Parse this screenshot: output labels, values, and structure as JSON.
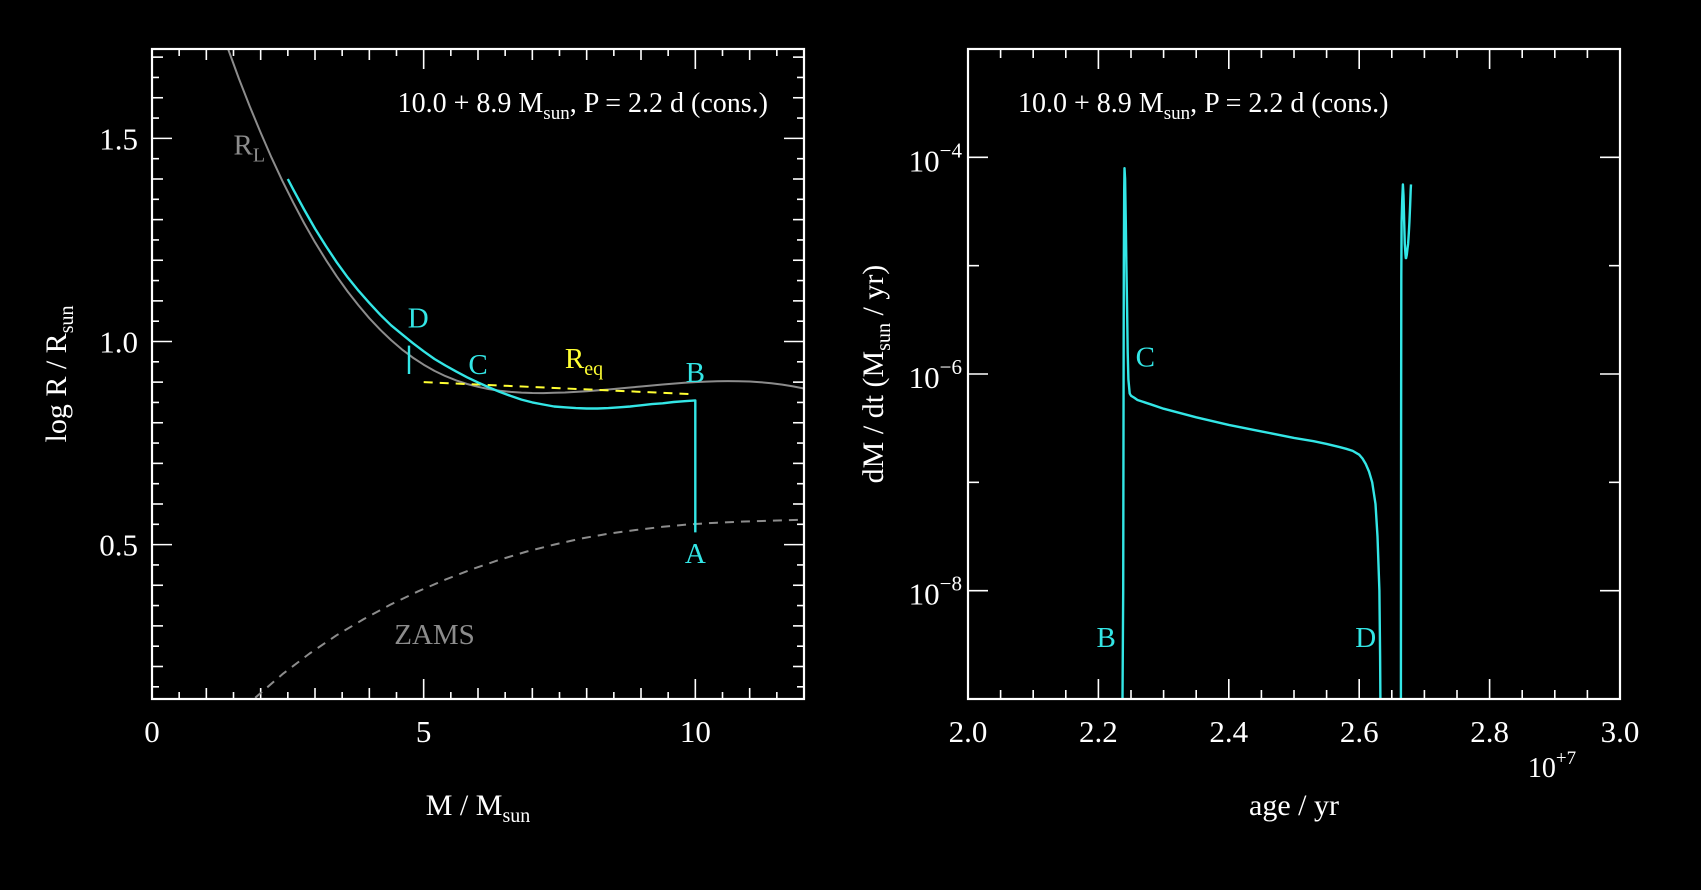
{
  "colors": {
    "background": "#000000",
    "axes": "#ffffff",
    "track": "#33e6e6",
    "roche": "#8c8c8c",
    "zams": "#8c8c8c",
    "req": "#ffff33",
    "marker": "#33e6e6"
  },
  "chart_data": [
    {
      "type": "line",
      "title": "10.0 + 8.9 M_sun, P = 2.2 d (cons.)",
      "title_parts": {
        "pre": "10.0 + 8.9 M",
        "sub": "sun",
        "post": ", P = 2.2 d (cons.)"
      },
      "xlabel": {
        "pre": "M / M",
        "sub": "sun"
      },
      "ylabel": {
        "pre": "log R / R",
        "sub": "sun"
      },
      "xlim": [
        0,
        12
      ],
      "ylim": [
        0.12,
        1.72
      ],
      "xticks": [
        0,
        5,
        10
      ],
      "xtick_labels": [
        "0",
        "5",
        "10"
      ],
      "yticks": [
        0.5,
        1.0,
        1.5
      ],
      "ytick_labels": [
        "0.5",
        "1.0",
        "1.5"
      ],
      "series": [
        {
          "name": "R_L",
          "label": {
            "pre": "R",
            "sub": "L",
            "x": 1.5,
            "y": 1.46
          },
          "style": "solid",
          "color": "roche",
          "x": [
            1.4,
            1.6,
            1.8,
            2.0,
            2.2,
            2.4,
            2.6,
            2.8,
            3.0,
            3.2,
            3.4,
            3.6,
            3.8,
            4.0,
            4.2,
            4.4,
            4.6,
            4.8,
            5.0,
            5.2,
            5.4,
            5.6,
            5.8,
            6.0,
            6.2,
            6.4,
            6.6,
            6.8,
            7.0,
            7.2,
            7.4,
            7.6,
            7.8,
            8.0,
            8.2,
            8.4,
            8.6,
            8.8,
            9.0,
            9.2,
            9.4,
            9.6,
            9.8,
            10.0,
            10.2,
            10.4,
            10.6,
            10.8,
            11.0,
            11.2,
            11.4,
            11.6,
            11.8,
            12.0
          ],
          "y": [
            1.72,
            1.6472,
            1.5785,
            1.5137,
            1.4527,
            1.3954,
            1.3416,
            1.2914,
            1.2445,
            1.2009,
            1.1604,
            1.1231,
            1.0888,
            1.0574,
            1.029,
            1.0034,
            0.9805,
            0.9604,
            0.9428,
            0.9277,
            0.9149,
            0.9042,
            0.8954,
            0.8884,
            0.8829,
            0.8789,
            0.876,
            0.8742,
            0.8733,
            0.8731,
            0.8736,
            0.8745,
            0.8759,
            0.8777,
            0.8797,
            0.8819,
            0.8843,
            0.8868,
            0.8893,
            0.8918,
            0.8941,
            0.8963,
            0.8983,
            0.9,
            0.9013,
            0.9022,
            0.9026,
            0.9024,
            0.9015,
            0.8999,
            0.8974,
            0.894,
            0.8896,
            0.8842
          ]
        },
        {
          "name": "ZAMS",
          "label": {
            "text": "ZAMS",
            "x": 5.2,
            "y": 0.255
          },
          "style": "dashed",
          "color": "zams",
          "x": [
            1.9,
            2.4,
            2.9,
            3.4,
            3.9,
            4.4,
            4.9,
            5.4,
            5.9,
            6.4,
            6.9,
            7.4,
            7.9,
            8.4,
            8.9,
            9.4,
            9.9,
            10.4,
            10.9,
            11.4,
            11.9,
            12.0
          ],
          "y": [
            0.123,
            0.181,
            0.232,
            0.277,
            0.317,
            0.353,
            0.385,
            0.414,
            0.44,
            0.463,
            0.483,
            0.5,
            0.515,
            0.527,
            0.536,
            0.544,
            0.55,
            0.554,
            0.557,
            0.559,
            0.561,
            0.562
          ]
        },
        {
          "name": "R_eq",
          "label": {
            "pre": "R",
            "sub": "eq",
            "x": 7.6,
            "y": 0.935
          },
          "style": "dashed",
          "color": "req",
          "x": [
            5.0,
            10.0
          ],
          "y": [
            0.9,
            0.87
          ]
        },
        {
          "name": "track",
          "style": "solid",
          "color": "track",
          "x": [
            10.0,
            10.0,
            9.8,
            9.6,
            9.4,
            9.2,
            9.0,
            8.8,
            8.6,
            8.4,
            8.2,
            8.0,
            7.8,
            7.6,
            7.4,
            7.2,
            7.0,
            6.8,
            6.6,
            6.4,
            6.2,
            6.0,
            5.8,
            5.6,
            5.4,
            5.2,
            5.0,
            4.8,
            4.6,
            4.4,
            4.2,
            4.0,
            3.8,
            3.6,
            3.4,
            3.2,
            3.0,
            2.8,
            2.6,
            2.5
          ],
          "y": [
            0.53,
            0.855,
            0.853,
            0.851,
            0.848,
            0.846,
            0.843,
            0.84,
            0.838,
            0.836,
            0.835,
            0.835,
            0.836,
            0.838,
            0.84,
            0.845,
            0.85,
            0.857,
            0.866,
            0.876,
            0.887,
            0.899,
            0.912,
            0.926,
            0.941,
            0.957,
            0.976,
            0.996,
            1.018,
            1.04,
            1.066,
            1.095,
            1.125,
            1.158,
            1.195,
            1.235,
            1.278,
            1.325,
            1.374,
            1.4
          ]
        },
        {
          "name": "D-spur",
          "style": "solid",
          "color": "track",
          "x": [
            4.73,
            4.73
          ],
          "y": [
            0.99,
            0.92
          ]
        }
      ],
      "annotations": [
        {
          "text": "A",
          "x": 10.0,
          "y": 0.455,
          "color": "marker"
        },
        {
          "text": "B",
          "x": 10.0,
          "y": 0.9,
          "color": "marker"
        },
        {
          "text": "C",
          "x": 6.0,
          "y": 0.92,
          "color": "marker"
        },
        {
          "text": "D",
          "x": 4.9,
          "y": 1.035,
          "color": "marker"
        }
      ]
    },
    {
      "type": "line",
      "title": "10.0 + 8.9 M_sun, P = 2.2 d (cons.)",
      "title_parts": {
        "pre": "10.0 + 8.9 M",
        "sub": "sun",
        "post": ", P = 2.2 d (cons.)"
      },
      "xlabel": {
        "text": "age / yr"
      },
      "ylabel": {
        "pre": "dM / dt (M",
        "sub": "sun",
        "post": " / yr)"
      },
      "x_multiplier": {
        "base": "10",
        "exp": "+7"
      },
      "xlim": [
        2.0,
        3.0
      ],
      "ylim_log10": [
        -9.0,
        -3.0
      ],
      "yscale": "log",
      "xticks": [
        2.0,
        2.2,
        2.4,
        2.6,
        2.8,
        3.0
      ],
      "xtick_labels": [
        "2.0",
        "2.2",
        "2.4",
        "2.6",
        "2.8",
        "3.0"
      ],
      "yticks_log10": [
        -8,
        -6,
        -4
      ],
      "ytick_labels": [
        {
          "base": "10",
          "exp": "−8"
        },
        {
          "base": "10",
          "exp": "−6"
        },
        {
          "base": "10",
          "exp": "−4"
        }
      ],
      "series": [
        {
          "name": "mass_transfer_rate",
          "style": "solid",
          "color": "track",
          "x": [
            2.237,
            2.238,
            2.2385,
            2.239,
            2.2395,
            2.24,
            2.241,
            2.242,
            2.243,
            2.244,
            2.245,
            2.246,
            2.248,
            2.25,
            2.255,
            2.26,
            2.28,
            2.3,
            2.35,
            2.4,
            2.45,
            2.5,
            2.53,
            2.55,
            2.57,
            2.58,
            2.59,
            2.6,
            2.605,
            2.61,
            2.615,
            2.62,
            2.625,
            2.628,
            2.631,
            2.632,
            2.6325
          ],
          "y_log10": [
            -9.0,
            -8.0,
            -6.5,
            -5.0,
            -4.3,
            -4.1,
            -4.2,
            -4.6,
            -5.0,
            -5.4,
            -5.8,
            -6.05,
            -6.18,
            -6.2,
            -6.22,
            -6.24,
            -6.28,
            -6.32,
            -6.4,
            -6.47,
            -6.53,
            -6.59,
            -6.62,
            -6.645,
            -6.675,
            -6.69,
            -6.71,
            -6.745,
            -6.78,
            -6.83,
            -6.9,
            -7.0,
            -7.2,
            -7.5,
            -8.0,
            -8.6,
            -9.0
          ]
        },
        {
          "name": "second_episode",
          "style": "solid",
          "color": "track",
          "x": [
            2.664,
            2.6642,
            2.6645,
            2.665,
            2.666,
            2.667,
            2.668,
            2.669,
            2.67,
            2.671,
            2.6715,
            2.672,
            2.673,
            2.674,
            2.675,
            2.676,
            2.677,
            2.678,
            2.679,
            2.6795
          ],
          "y_log10": [
            -9.0,
            -6.5,
            -5.1,
            -4.6,
            -4.4,
            -4.25,
            -4.35,
            -4.6,
            -4.8,
            -4.9,
            -4.93,
            -4.93,
            -4.9,
            -4.85,
            -4.8,
            -4.7,
            -4.6,
            -4.45,
            -4.3,
            -4.25
          ]
        }
      ],
      "annotations": [
        {
          "text": "B",
          "x": 2.212,
          "y_log10": -8.52,
          "color": "marker"
        },
        {
          "text": "C",
          "x": 2.272,
          "y_log10": -5.93,
          "color": "marker"
        },
        {
          "text": "D",
          "x": 2.61,
          "y_log10": -8.52,
          "color": "marker"
        }
      ]
    }
  ]
}
